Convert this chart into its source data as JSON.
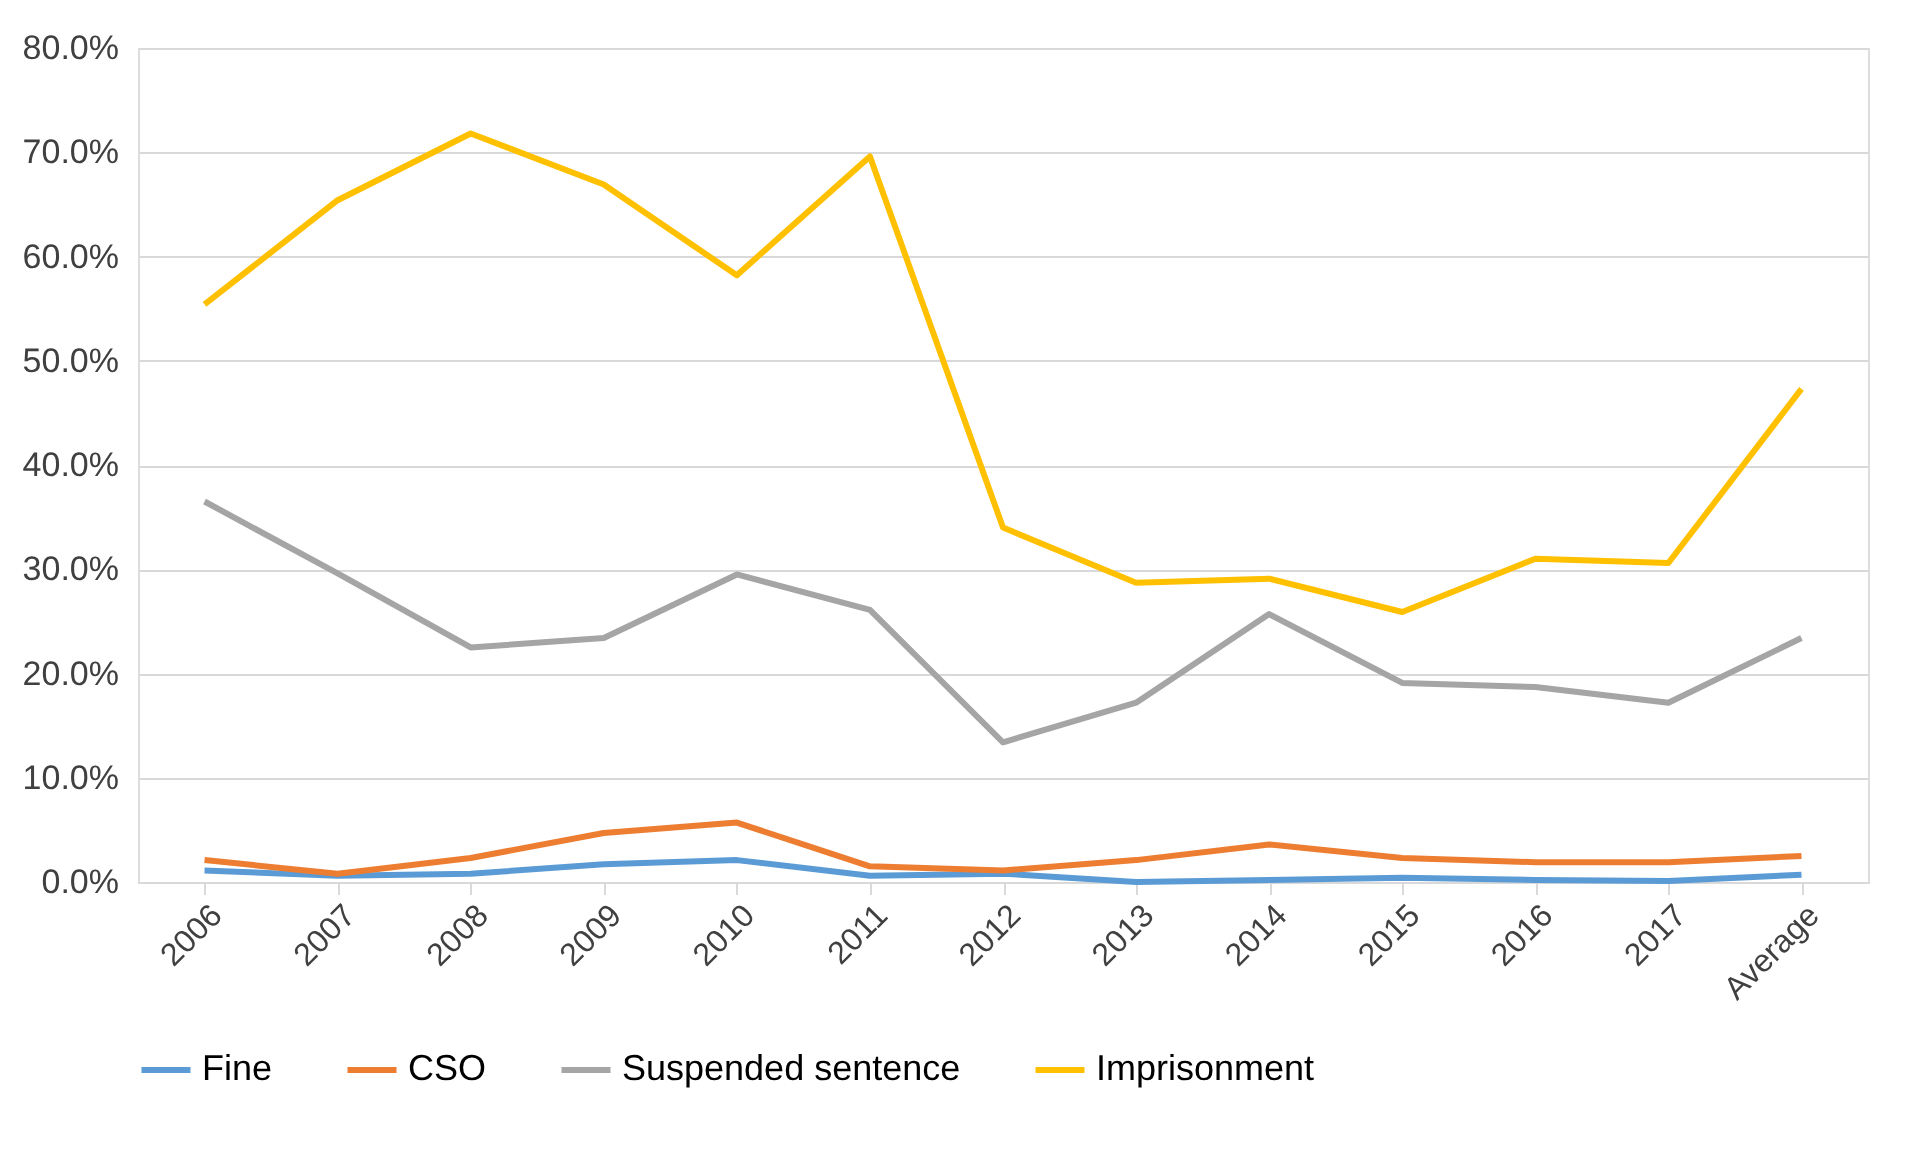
{
  "chart_data": {
    "type": "line",
    "categories": [
      "2006",
      "2007",
      "2008",
      "2009",
      "2010",
      "2011",
      "2012",
      "2013",
      "2014",
      "2015",
      "2016",
      "2017",
      "Average"
    ],
    "series": [
      {
        "name": "Fine",
        "color": "#5b9bd5",
        "values": [
          1.1,
          0.6,
          0.8,
          1.7,
          2.1,
          0.6,
          0.8,
          0.0,
          0.2,
          0.4,
          0.2,
          0.1,
          0.7
        ]
      },
      {
        "name": "CSO",
        "color": "#ed7d31",
        "values": [
          2.1,
          0.8,
          2.3,
          4.7,
          5.7,
          1.5,
          1.1,
          2.1,
          3.6,
          2.3,
          1.9,
          1.9,
          2.5
        ]
      },
      {
        "name": "Suspended sentence",
        "color": "#a5a5a5",
        "values": [
          36.5,
          29.6,
          22.5,
          23.4,
          29.5,
          26.1,
          13.4,
          17.2,
          25.7,
          19.1,
          18.7,
          17.2,
          23.4
        ]
      },
      {
        "name": "Imprisonment",
        "color": "#ffc000",
        "values": [
          55.4,
          65.4,
          71.8,
          66.9,
          58.2,
          69.6,
          34.0,
          28.7,
          29.1,
          25.9,
          31.0,
          30.6,
          47.3
        ]
      }
    ],
    "ylim": [
      0,
      80
    ],
    "yticks": [
      {
        "value": 0,
        "label": "0.0%"
      },
      {
        "value": 10,
        "label": "10.0%"
      },
      {
        "value": 20,
        "label": "20.0%"
      },
      {
        "value": 30,
        "label": "30.0%"
      },
      {
        "value": 40,
        "label": "40.0%"
      },
      {
        "value": 50,
        "label": "50.0%"
      },
      {
        "value": 60,
        "label": "60.0%"
      },
      {
        "value": 70,
        "label": "70.0%"
      },
      {
        "value": 80,
        "label": "80.0%"
      }
    ],
    "grid": "y",
    "legend": "bottom",
    "marker": "none",
    "line_style": "solid"
  }
}
